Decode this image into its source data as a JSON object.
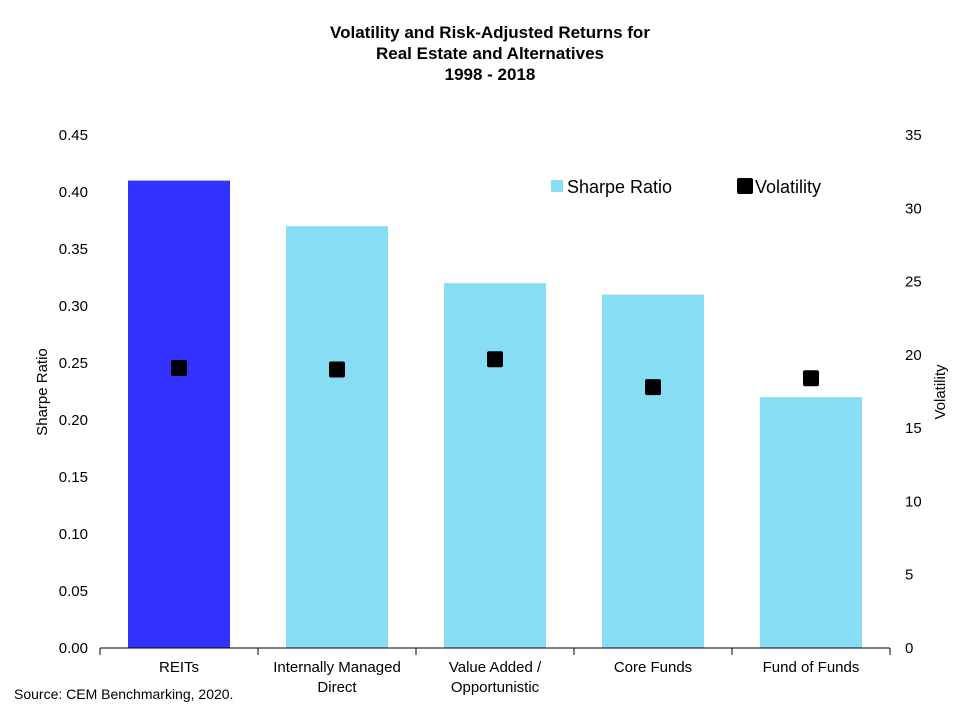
{
  "chart_data": {
    "type": "bar",
    "title_lines": [
      "Volatility and Risk-Adjusted Returns for",
      "Real Estate and Alternatives",
      "1998 - 2018"
    ],
    "categories": [
      [
        "REITs"
      ],
      [
        "Internally Managed",
        "Direct"
      ],
      [
        "Value Added /",
        "Opportunistic"
      ],
      [
        "Core Funds"
      ],
      [
        "Fund of Funds"
      ]
    ],
    "series": [
      {
        "name": "Sharpe Ratio",
        "kind": "bar",
        "axis": "left",
        "values": [
          0.41,
          0.37,
          0.32,
          0.31,
          0.22
        ],
        "colors": [
          "#3333ff",
          "#87ddf4",
          "#87ddf4",
          "#87ddf4",
          "#87ddf4"
        ]
      },
      {
        "name": "Volatility",
        "kind": "scatter",
        "axis": "right",
        "values": [
          19.1,
          19.0,
          19.7,
          17.8,
          18.4
        ],
        "color": "#000000"
      }
    ],
    "ylabel": "Sharpe Ratio",
    "y2label": "Volatility",
    "ylim": [
      0,
      0.45
    ],
    "y2lim": [
      0,
      35
    ],
    "yticks": [
      "0.00",
      "0.05",
      "0.10",
      "0.15",
      "0.20",
      "0.25",
      "0.30",
      "0.35",
      "0.40",
      "0.45"
    ],
    "y2ticks": [
      "0",
      "5",
      "10",
      "15",
      "20",
      "25",
      "30",
      "35"
    ],
    "legend_position": "top-right",
    "grid": false
  },
  "source": "Source: CEM Benchmarking, 2020."
}
